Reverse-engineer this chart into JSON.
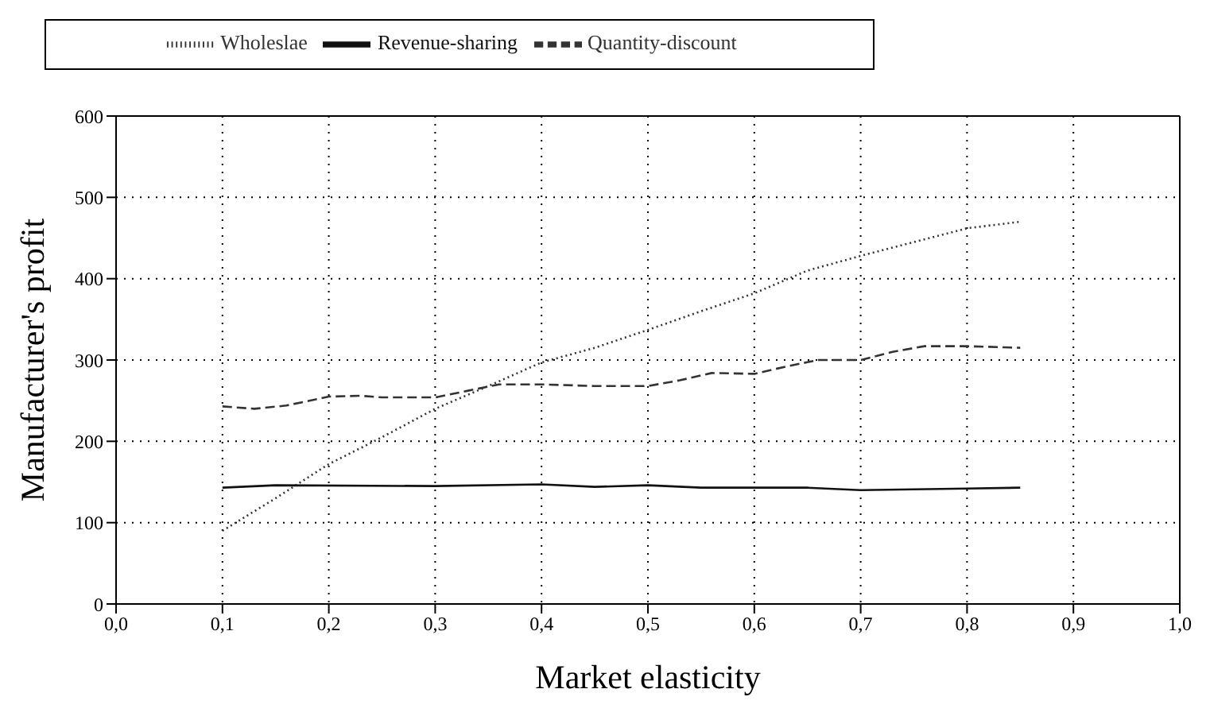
{
  "chart_data": {
    "type": "line",
    "xlabel": "Market elasticity",
    "ylabel": "Manufacturer's profit",
    "xlim": [
      0,
      1
    ],
    "ylim": [
      0,
      600
    ],
    "xticks": [
      {
        "value": 0,
        "label": "0,0"
      },
      {
        "value": 0.1,
        "label": "0,1"
      },
      {
        "value": 0.2,
        "label": "0,2"
      },
      {
        "value": 0.3,
        "label": "0,3"
      },
      {
        "value": 0.4,
        "label": "0,4"
      },
      {
        "value": 0.5,
        "label": "0,5"
      },
      {
        "value": 0.6,
        "label": "0,6"
      },
      {
        "value": 0.7,
        "label": "0,7"
      },
      {
        "value": 0.8,
        "label": "0,8"
      },
      {
        "value": 0.9,
        "label": "0,9"
      },
      {
        "value": 1,
        "label": "1,0"
      }
    ],
    "yticks": [
      0,
      100,
      200,
      300,
      400,
      500,
      600
    ],
    "grid": true,
    "legend": "top",
    "marker": "none",
    "series": [
      {
        "name": "Wholeslae",
        "color": "#333333",
        "line_style": "dotted",
        "x": [
          0.1,
          0.15,
          0.2,
          0.25,
          0.3,
          0.35,
          0.4,
          0.45,
          0.5,
          0.55,
          0.6,
          0.65,
          0.7,
          0.75,
          0.8,
          0.85
        ],
        "values": [
          90,
          130,
          172,
          205,
          240,
          268,
          297,
          315,
          337,
          360,
          382,
          410,
          428,
          445,
          462,
          470
        ]
      },
      {
        "name": "Revenue-sharing",
        "color": "#111111",
        "line_style": "solid",
        "x": [
          0.1,
          0.15,
          0.3,
          0.4,
          0.45,
          0.5,
          0.55,
          0.65,
          0.7,
          0.8,
          0.85
        ],
        "values": [
          143,
          146,
          145,
          147,
          144,
          146,
          143,
          143,
          140,
          142,
          143
        ]
      },
      {
        "name": "Quantity-discount",
        "color": "#333333",
        "line_style": "dashed",
        "x": [
          0.1,
          0.13,
          0.16,
          0.2,
          0.23,
          0.25,
          0.3,
          0.33,
          0.36,
          0.4,
          0.45,
          0.5,
          0.53,
          0.56,
          0.6,
          0.63,
          0.66,
          0.7,
          0.73,
          0.76,
          0.8,
          0.85
        ],
        "values": [
          243,
          240,
          244,
          255,
          256,
          254,
          254,
          262,
          270,
          270,
          268,
          268,
          275,
          284,
          283,
          292,
          300,
          300,
          310,
          317,
          317,
          315
        ]
      }
    ]
  }
}
